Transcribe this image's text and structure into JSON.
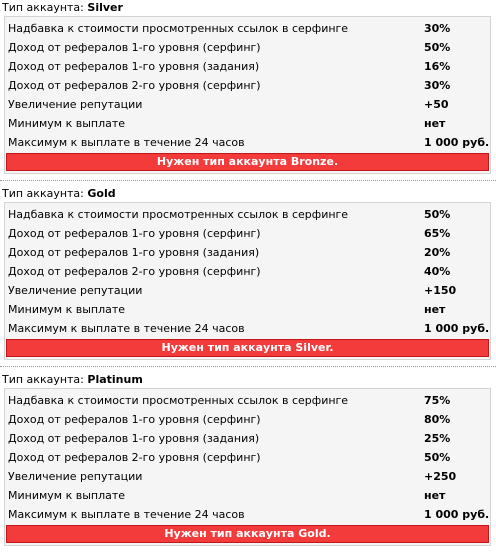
{
  "type_prefix": "Тип аккаунта: ",
  "accounts": [
    {
      "name": "Silver",
      "rows": [
        {
          "label": "Надбавка к стоимости просмотренных ссылок в серфинге",
          "value": "30%"
        },
        {
          "label": "Доход от рефералов 1-го уровня (серфинг)",
          "value": "50%"
        },
        {
          "label": "Доход от рефералов 1-го уровня (задания)",
          "value": "16%"
        },
        {
          "label": "Доход от рефералов 2-го уровня (серфинг)",
          "value": "30%"
        },
        {
          "label": "Увеличение репутации",
          "value": "+50"
        },
        {
          "label": "Минимум к выплате",
          "value": "нет"
        },
        {
          "label": "Максимум к выплате в течение 24 часов",
          "value": "1 000 руб."
        }
      ],
      "need_label": "Нужен тип аккаунта Bronze."
    },
    {
      "name": "Gold",
      "rows": [
        {
          "label": "Надбавка к стоимости просмотренных ссылок в серфинге",
          "value": "50%"
        },
        {
          "label": "Доход от рефералов 1-го уровня (серфинг)",
          "value": "65%"
        },
        {
          "label": "Доход от рефералов 1-го уровня (задания)",
          "value": "20%"
        },
        {
          "label": "Доход от рефералов 2-го уровня (серфинг)",
          "value": "40%"
        },
        {
          "label": "Увеличение репутации",
          "value": "+150"
        },
        {
          "label": "Минимум к выплате",
          "value": "нет"
        },
        {
          "label": "Максимум к выплате в течение 24 часов",
          "value": "1 000 руб."
        }
      ],
      "need_label": "Нужен тип аккаунта Silver."
    },
    {
      "name": "Platinum",
      "rows": [
        {
          "label": "Надбавка к стоимости просмотренных ссылок в серфинге",
          "value": "75%"
        },
        {
          "label": "Доход от рефералов 1-го уровня (серфинг)",
          "value": "80%"
        },
        {
          "label": "Доход от рефералов 1-го уровня (задания)",
          "value": "25%"
        },
        {
          "label": "Доход от рефералов 2-го уровня (серфинг)",
          "value": "50%"
        },
        {
          "label": "Увеличение репутации",
          "value": "+250"
        },
        {
          "label": "Минимум к выплате",
          "value": "нет"
        },
        {
          "label": "Максимум к выплате в течение 24 часов",
          "value": "1 000 руб."
        }
      ],
      "need_label": "Нужен тип аккаунта Gold."
    }
  ],
  "colors": {
    "need_bar": "#f43b3b",
    "panel_bg": "#f5f5f5"
  }
}
